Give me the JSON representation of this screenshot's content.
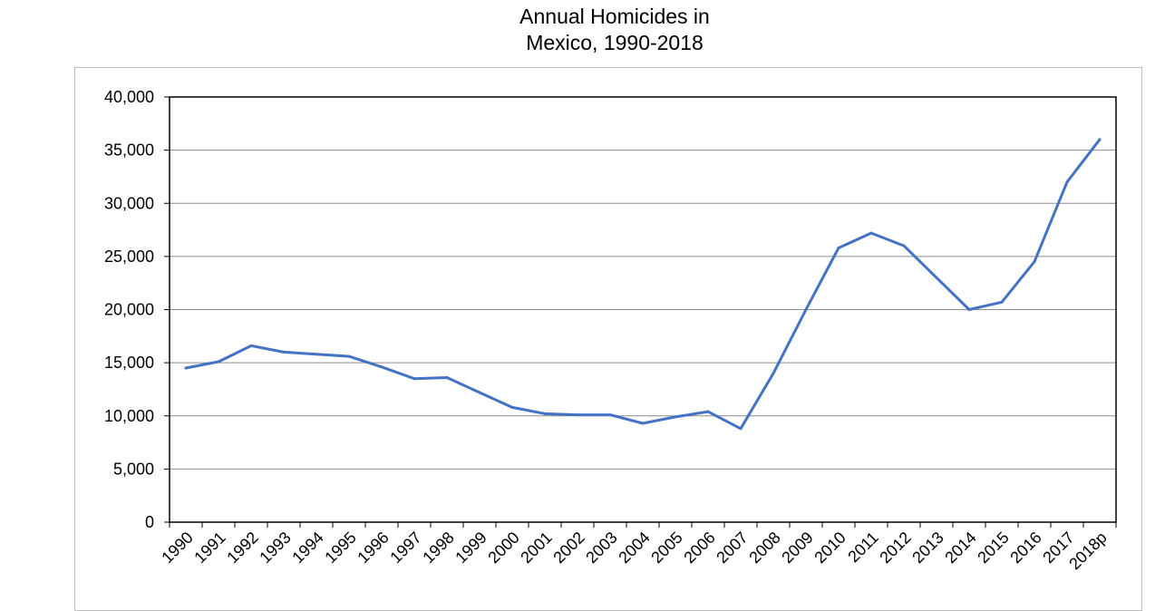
{
  "title_lines": [
    "Annual Homicides in",
    "Mexico, 1990-2018"
  ],
  "chart_data": {
    "type": "line",
    "title": "Annual Homicides in Mexico, 1990-2018",
    "xlabel": "",
    "ylabel": "",
    "ylim": [
      0,
      40000
    ],
    "ytick_labels": [
      "0",
      "5,000",
      "10,000",
      "15,000",
      "20,000",
      "25,000",
      "30,000",
      "35,000",
      "40,000"
    ],
    "grid": true,
    "legend": "none",
    "categories": [
      "1990",
      "1991",
      "1992",
      "1993",
      "1994",
      "1995",
      "1996",
      "1997",
      "1998",
      "1999",
      "2000",
      "2001",
      "2002",
      "2003",
      "2004",
      "2005",
      "2006",
      "2007",
      "2008",
      "2009",
      "2010",
      "2011",
      "2012",
      "2013",
      "2014",
      "2015",
      "2016",
      "2017",
      "2018p"
    ],
    "series": [
      {
        "color": "#4472c4",
        "values": [
          14500,
          15100,
          16600,
          16000,
          15800,
          15600,
          14600,
          13500,
          13600,
          12200,
          10800,
          10200,
          10100,
          10100,
          9300,
          9900,
          10400,
          8800,
          14000,
          20000,
          25800,
          27200,
          26000,
          23000,
          20000,
          20700,
          24500,
          32000,
          36000
        ]
      }
    ]
  }
}
